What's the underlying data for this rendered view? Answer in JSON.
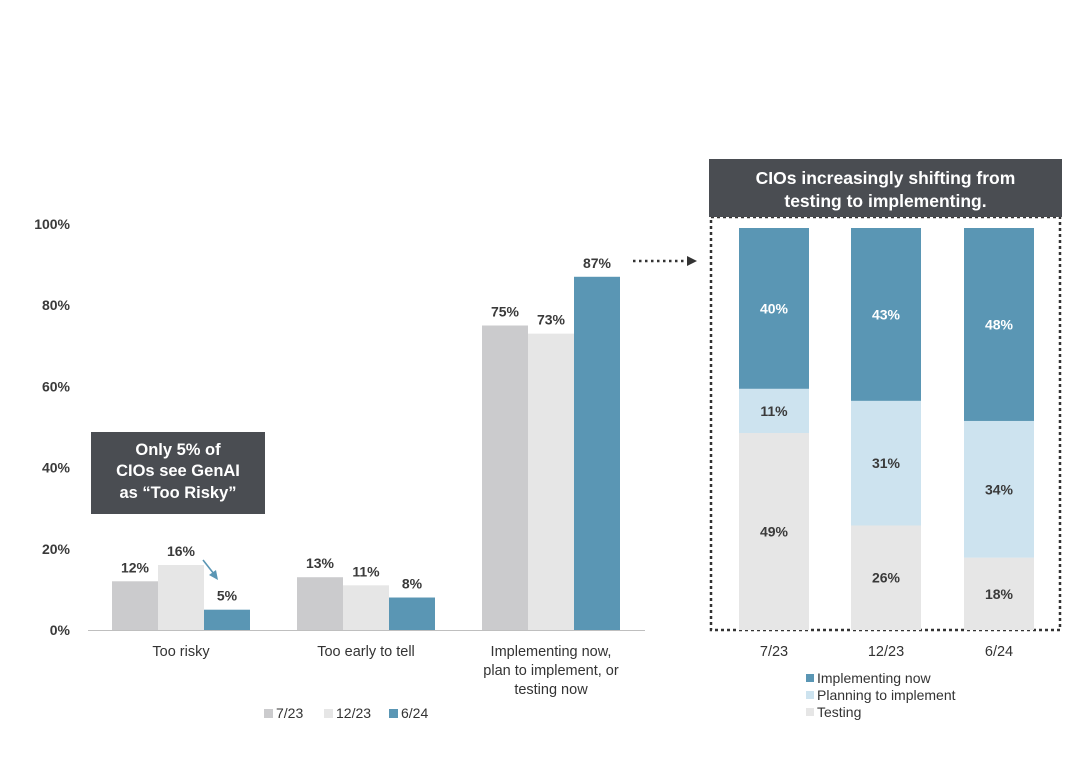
{
  "chart_data": [
    {
      "type": "bar",
      "title": "",
      "categories": [
        "Too risky",
        "Too early to tell",
        "Implementing now, plan to implement, or testing now"
      ],
      "category_lines": [
        [
          "Too risky"
        ],
        [
          "Too early to tell"
        ],
        [
          "Implementing now,",
          "plan to implement, or",
          "testing now"
        ]
      ],
      "series": [
        {
          "name": "7/23",
          "color": "#cbcbcd",
          "values": [
            12,
            13,
            75
          ]
        },
        {
          "name": "12/23",
          "color": "#e6e6e6",
          "values": [
            16,
            11,
            73
          ]
        },
        {
          "name": "6/24",
          "color": "#5a96b4",
          "values": [
            5,
            8,
            87
          ]
        }
      ],
      "ylim": [
        0,
        100
      ],
      "yticks": [
        0,
        20,
        40,
        60,
        80,
        100
      ],
      "ytick_labels": [
        "0%",
        "20%",
        "40%",
        "60%",
        "80%",
        "100%"
      ],
      "value_suffix": "%",
      "legend_placement": "bottom-center",
      "annotations": [
        {
          "text_lines": [
            "Only 5% of",
            "CIOs see GenAI",
            "as “Too Risky”"
          ],
          "anchor": "Too risky"
        }
      ]
    },
    {
      "type": "bar",
      "stacked": true,
      "normalized": true,
      "title": "CIOs increasingly shifting from testing to implementing.",
      "title_lines": [
        "CIOs increasingly shifting from",
        "testing to implementing."
      ],
      "categories": [
        "7/23",
        "12/23",
        "6/24"
      ],
      "series": [
        {
          "name": "Testing",
          "color": "#e6e6e6",
          "values": [
            49,
            26,
            18
          ]
        },
        {
          "name": "Planning to implement",
          "color": "#cde3ef",
          "values": [
            11,
            31,
            34
          ]
        },
        {
          "name": "Implementing now",
          "color": "#5a96b4",
          "values": [
            40,
            43,
            48
          ]
        }
      ],
      "legend_order": [
        "Implementing now",
        "Planning to implement",
        "Testing"
      ],
      "value_suffix": "%",
      "legend_placement": "bottom-center"
    }
  ]
}
